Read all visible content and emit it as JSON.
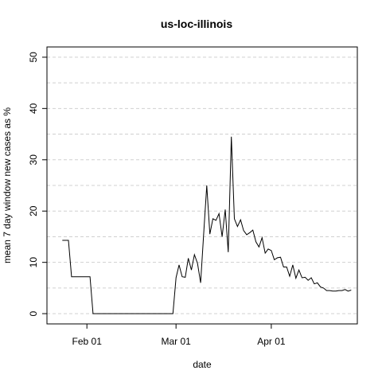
{
  "chart_data": {
    "type": "line",
    "title": "us-loc-illinois",
    "xlabel": "date",
    "ylabel": "mean  7  day window new cases as %",
    "xlim": [
      "2020-01-19",
      "2020-04-29"
    ],
    "ylim": [
      0,
      50
    ],
    "yticks": [
      0,
      10,
      20,
      30,
      40,
      50
    ],
    "xticks": [
      {
        "date": "2020-02-01",
        "label": "Feb 01"
      },
      {
        "date": "2020-03-01",
        "label": "Mar 01"
      },
      {
        "date": "2020-04-01",
        "label": "Apr 01"
      }
    ],
    "grid": {
      "horizontal": true,
      "style": "dashed",
      "color": "#d0d0d0"
    },
    "line_color": "#000000",
    "series": [
      {
        "x": [
          "2020-01-24",
          "2020-01-25",
          "2020-01-26",
          "2020-01-27",
          "2020-01-28",
          "2020-01-29",
          "2020-01-30",
          "2020-01-31",
          "2020-02-01",
          "2020-02-02",
          "2020-02-03",
          "2020-02-04",
          "2020-02-05",
          "2020-02-06",
          "2020-02-07",
          "2020-02-08",
          "2020-02-09",
          "2020-02-10",
          "2020-02-11",
          "2020-02-12",
          "2020-02-13",
          "2020-02-14",
          "2020-02-15",
          "2020-02-16",
          "2020-02-17",
          "2020-02-18",
          "2020-02-19",
          "2020-02-20",
          "2020-02-21",
          "2020-02-22",
          "2020-02-23",
          "2020-02-24",
          "2020-02-25",
          "2020-02-26",
          "2020-02-27",
          "2020-02-28",
          "2020-02-29",
          "2020-03-01",
          "2020-03-02",
          "2020-03-03",
          "2020-03-04",
          "2020-03-05",
          "2020-03-06",
          "2020-03-07",
          "2020-03-08",
          "2020-03-09",
          "2020-03-10",
          "2020-03-11",
          "2020-03-12",
          "2020-03-13",
          "2020-03-14",
          "2020-03-15",
          "2020-03-16",
          "2020-03-17",
          "2020-03-18",
          "2020-03-19",
          "2020-03-20",
          "2020-03-21",
          "2020-03-22",
          "2020-03-23",
          "2020-03-24",
          "2020-03-25",
          "2020-03-26",
          "2020-03-27",
          "2020-03-28",
          "2020-03-29",
          "2020-03-30",
          "2020-03-31",
          "2020-04-01",
          "2020-04-02",
          "2020-04-03",
          "2020-04-04",
          "2020-04-05",
          "2020-04-06",
          "2020-04-07",
          "2020-04-08",
          "2020-04-09",
          "2020-04-10",
          "2020-04-11",
          "2020-04-12",
          "2020-04-13",
          "2020-04-14",
          "2020-04-15",
          "2020-04-16",
          "2020-04-17",
          "2020-04-18",
          "2020-04-19",
          "2020-04-20",
          "2020-04-21",
          "2020-04-22",
          "2020-04-23",
          "2020-04-24",
          "2020-04-25",
          "2020-04-26",
          "2020-04-27"
        ],
        "y": [
          14.3,
          14.3,
          14.3,
          7.2,
          7.2,
          7.2,
          7.2,
          7.2,
          7.2,
          7.2,
          0,
          0,
          0,
          0,
          0,
          0,
          0,
          0,
          0,
          0,
          0,
          0,
          0,
          0,
          0,
          0,
          0,
          0,
          0,
          0,
          0,
          0,
          0,
          0,
          0,
          0,
          0,
          7.0,
          9.5,
          7.2,
          7.1,
          10.8,
          8.5,
          11.5,
          9.8,
          6.0,
          15.5,
          25.0,
          15.5,
          18.5,
          18.2,
          19.5,
          15.0,
          20.3,
          12.0,
          34.5,
          18.5,
          17.0,
          18.3,
          16.2,
          15.4,
          15.8,
          16.3,
          14.0,
          13.0,
          14.8,
          11.8,
          12.6,
          12.3,
          10.5,
          10.9,
          11.0,
          9.1,
          9.1,
          7.3,
          9.5,
          6.9,
          8.5,
          7.0,
          7.1,
          6.5,
          7.0,
          5.8,
          6.0,
          5.2,
          5.0,
          4.5,
          4.5,
          4.4,
          4.4,
          4.5,
          4.5,
          4.7,
          4.4,
          4.6
        ]
      }
    ]
  }
}
